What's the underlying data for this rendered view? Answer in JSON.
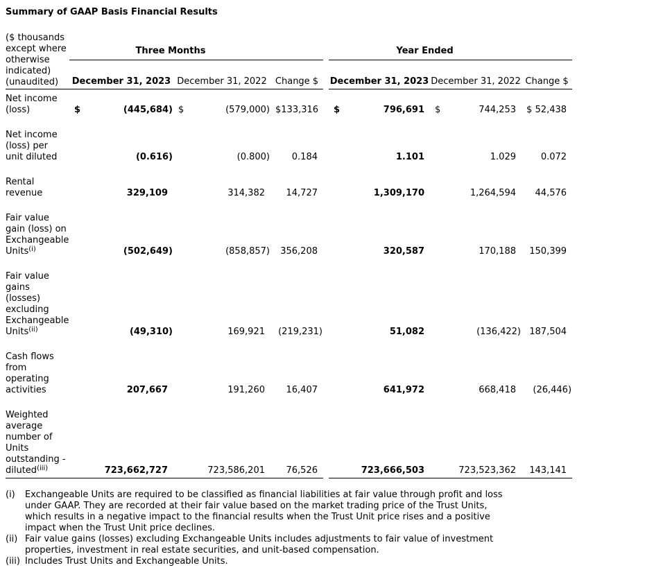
{
  "title": "Summary of GAAP Basis Financial Results",
  "colors": {
    "text": "#000000",
    "background": "#ffffff",
    "rule": "#000000"
  },
  "table": {
    "corner_note": "($ thousands\nexcept where\notherwise\nindicated)\n(unaudited)",
    "groups": [
      {
        "label": "Three Months"
      },
      {
        "label": "Year Ended"
      }
    ],
    "columns": [
      "December 31, 2023",
      "December 31, 2022",
      "Change $",
      "December 31, 2023",
      "December 31, 2022",
      "Change $"
    ],
    "rows": [
      {
        "label": "Net income\n(loss)",
        "sup": "",
        "values": [
          {
            "cur": "$",
            "v": "(445,684)"
          },
          {
            "cur": "$",
            "v": "(579,000)"
          },
          {
            "cur": "$",
            "v": "133,316"
          },
          {
            "cur": "$",
            "v": "796,691"
          },
          {
            "cur": "$",
            "v": "744,253"
          },
          {
            "cur": "$",
            "v": "52,438"
          }
        ]
      },
      {
        "label": "Net income\n(loss) per\nunit diluted",
        "sup": "",
        "values": [
          {
            "v": "(0.616)"
          },
          {
            "v": "(0.800)"
          },
          {
            "v": "0.184"
          },
          {
            "v": "1.101"
          },
          {
            "v": "1.029"
          },
          {
            "v": "0.072"
          }
        ]
      },
      {
        "label": "Rental\nrevenue",
        "sup": "",
        "values": [
          {
            "v": "329,109"
          },
          {
            "v": "314,382"
          },
          {
            "v": "14,727"
          },
          {
            "v": "1,309,170"
          },
          {
            "v": "1,264,594"
          },
          {
            "v": "44,576"
          }
        ]
      },
      {
        "label": "Fair value\ngain (loss) on\nExchangeable\nUnits",
        "sup": "(i)",
        "values": [
          {
            "v": "(502,649)"
          },
          {
            "v": "(858,857)"
          },
          {
            "v": "356,208"
          },
          {
            "v": "320,587"
          },
          {
            "v": "170,188"
          },
          {
            "v": "150,399"
          }
        ]
      },
      {
        "label": "Fair value\ngains\n(losses)\nexcluding\nExchangeable\nUnits",
        "sup": "(ii)",
        "values": [
          {
            "v": "(49,310)"
          },
          {
            "v": "169,921"
          },
          {
            "v": "(219,231)"
          },
          {
            "v": "51,082"
          },
          {
            "v": "(136,422)"
          },
          {
            "v": "187,504"
          }
        ]
      },
      {
        "label": "Cash flows\nfrom\noperating\nactivities",
        "sup": "",
        "values": [
          {
            "v": "207,667"
          },
          {
            "v": "191,260"
          },
          {
            "v": "16,407"
          },
          {
            "v": "641,972"
          },
          {
            "v": "668,418"
          },
          {
            "v": "(26,446)"
          }
        ]
      },
      {
        "label": "Weighted\naverage\nnumber of\nUnits\noutstanding -\ndiluted",
        "sup": "(iii)",
        "values": [
          {
            "v": "723,662,727"
          },
          {
            "v": "723,586,201"
          },
          {
            "v": "76,526"
          },
          {
            "v": "723,666,503"
          },
          {
            "v": "723,523,362"
          },
          {
            "v": "143,141"
          }
        ]
      }
    ]
  },
  "footnotes": [
    {
      "marker": "(i)",
      "text": "Exchangeable Units are required to be classified as financial liabilities at fair value through profit and loss\nunder GAAP. They are recorded at their fair value based on the market trading price of the Trust Units,\nwhich results in a negative impact to the financial results when the Trust Unit price rises and a positive\nimpact when the Trust Unit price declines."
    },
    {
      "marker": "(ii)",
      "text": "Fair value gains (losses) excluding Exchangeable Units includes adjustments to fair value of investment\nproperties, investment in real estate securities, and unit-based compensation."
    },
    {
      "marker": "(iii)",
      "text": "Includes Trust Units and Exchangeable Units."
    }
  ]
}
